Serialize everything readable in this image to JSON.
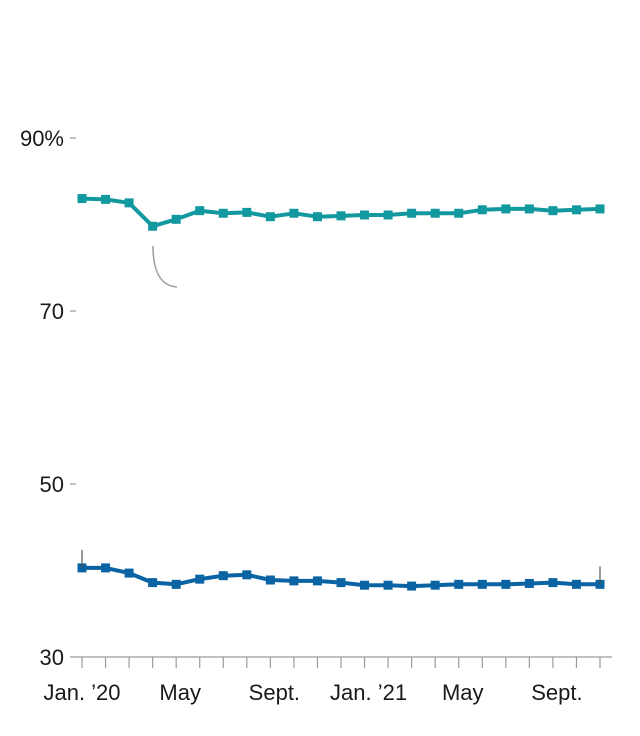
{
  "chart_data": {
    "type": "line",
    "title": "",
    "xlabel": "",
    "ylabel": "",
    "ylim": [
      30,
      90
    ],
    "y_ticks": [
      {
        "value": 90,
        "label": "90%"
      },
      {
        "value": 70,
        "label": "70"
      },
      {
        "value": 50,
        "label": "50"
      },
      {
        "value": 30,
        "label": "30"
      }
    ],
    "x_labels": [
      {
        "index": 0,
        "label": "Jan. ’20"
      },
      {
        "index": 4,
        "label": "May"
      },
      {
        "index": 8,
        "label": "Sept."
      },
      {
        "index": 12,
        "label": "Jan. ’21"
      },
      {
        "index": 16,
        "label": "May"
      },
      {
        "index": 20,
        "label": "Sept."
      }
    ],
    "month_count": 23,
    "series": [
      {
        "color": "#12999f",
        "values": [
          83.0,
          82.9,
          82.5,
          79.8,
          80.6,
          81.6,
          81.3,
          81.4,
          80.9,
          81.3,
          80.9,
          81.0,
          81.1,
          81.1,
          81.3,
          81.3,
          81.3,
          81.7,
          81.8,
          81.8,
          81.6,
          81.7,
          81.8
        ]
      },
      {
        "color": "#0a64a4",
        "values": [
          40.3,
          40.3,
          39.7,
          38.6,
          38.4,
          39.0,
          39.4,
          39.5,
          38.9,
          38.8,
          38.8,
          38.6,
          38.3,
          38.3,
          38.2,
          38.3,
          38.4,
          38.4,
          38.4,
          38.5,
          38.6,
          38.4,
          38.4
        ]
      }
    ],
    "grid": false,
    "legend": "none"
  }
}
